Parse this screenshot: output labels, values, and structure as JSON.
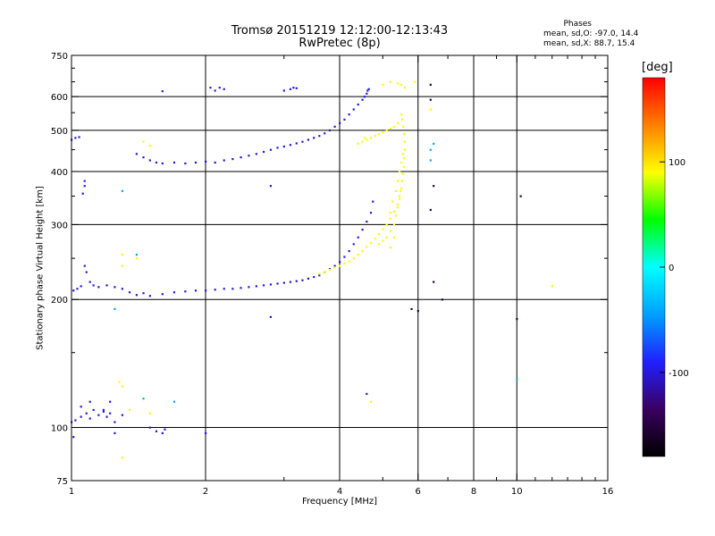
{
  "title": "Tromsø 20151219 12:12:00-12:13:43",
  "subtitle": "RwPretec (8p)",
  "stats": {
    "header": "Phases",
    "lines": [
      "mean, sd,O: -97.0, 14.4",
      "mean, sd,X:  88.7, 15.4"
    ]
  },
  "colorbar": {
    "label": "[deg]",
    "range": [
      -180,
      180
    ],
    "ticks": [
      {
        "v": 100,
        "label": "100"
      },
      {
        "v": 0,
        "label": "0"
      },
      {
        "v": -100,
        "label": "-100"
      }
    ],
    "colors": [
      "#000000",
      "#3a0060",
      "#2020ff",
      "#00a0ff",
      "#00ffff",
      "#00ff00",
      "#ffff00",
      "#ff8000",
      "#ff0000"
    ]
  },
  "chart_data": {
    "type": "scatter",
    "xlabel": "Frequency [MHz]",
    "ylabel": "Stationary phase Virtual Height [km]",
    "xscale": "log",
    "yscale": "log",
    "xlim": [
      1,
      16
    ],
    "ylim": [
      75,
      750
    ],
    "grid": true,
    "xticks": [
      {
        "v": 1,
        "label": "1"
      },
      {
        "v": 2,
        "label": "2"
      },
      {
        "v": 4,
        "label": "4"
      },
      {
        "v": 6,
        "label": "6"
      },
      {
        "v": 8,
        "label": "8"
      },
      {
        "v": 10,
        "label": "10"
      },
      {
        "v": 16,
        "label": "16"
      }
    ],
    "xgrid": [
      1,
      2,
      4,
      6,
      8,
      10,
      16
    ],
    "xminor": [
      3,
      5,
      7,
      9,
      11,
      12,
      13,
      14,
      15
    ],
    "yticks": [
      {
        "v": 75,
        "label": "75"
      },
      {
        "v": 100,
        "label": "100"
      },
      {
        "v": 200,
        "label": "200"
      },
      {
        "v": 300,
        "label": "300"
      },
      {
        "v": 400,
        "label": "400"
      },
      {
        "v": 500,
        "label": "500"
      },
      {
        "v": 600,
        "label": "600"
      },
      {
        "v": 750,
        "label": "750"
      }
    ],
    "ygrid": [
      100,
      200,
      300,
      400,
      500,
      600
    ],
    "yminor": [
      150,
      250,
      350,
      450,
      550,
      650,
      700
    ],
    "series": [
      {
        "mode": "O",
        "phase_deg": -100,
        "points": [
          [
            1.01,
            210
          ],
          [
            1.03,
            212
          ],
          [
            1.05,
            215
          ],
          [
            1.07,
            240
          ],
          [
            1.08,
            232
          ],
          [
            1.1,
            220
          ],
          [
            1.12,
            216
          ],
          [
            1.15,
            214
          ],
          [
            1.2,
            216
          ],
          [
            1.25,
            214
          ],
          [
            1.3,
            212
          ],
          [
            1.35,
            208
          ],
          [
            1.4,
            205
          ],
          [
            1.45,
            207
          ],
          [
            1.5,
            204
          ],
          [
            1.6,
            206
          ],
          [
            1.7,
            208
          ],
          [
            1.8,
            209
          ],
          [
            1.9,
            210
          ],
          [
            2.0,
            210
          ],
          [
            2.1,
            211
          ],
          [
            2.2,
            212
          ],
          [
            2.3,
            212
          ],
          [
            2.4,
            213
          ],
          [
            2.5,
            214
          ],
          [
            2.6,
            215
          ],
          [
            2.7,
            216
          ],
          [
            2.8,
            217
          ],
          [
            2.9,
            218
          ],
          [
            3.0,
            219
          ],
          [
            3.1,
            220
          ],
          [
            3.2,
            221
          ],
          [
            3.3,
            222
          ],
          [
            3.4,
            224
          ],
          [
            3.5,
            226
          ],
          [
            3.6,
            228
          ],
          [
            3.7,
            232
          ],
          [
            3.8,
            236
          ],
          [
            3.9,
            240
          ],
          [
            4.0,
            245
          ],
          [
            4.1,
            252
          ],
          [
            4.2,
            260
          ],
          [
            4.3,
            270
          ],
          [
            4.4,
            280
          ],
          [
            4.5,
            292
          ],
          [
            4.6,
            305
          ],
          [
            4.7,
            320
          ],
          [
            4.75,
            340
          ],
          [
            1.4,
            440
          ],
          [
            1.45,
            432
          ],
          [
            1.5,
            425
          ],
          [
            1.55,
            420
          ],
          [
            1.6,
            418
          ],
          [
            1.7,
            420
          ],
          [
            1.8,
            418
          ],
          [
            1.9,
            420
          ],
          [
            2.0,
            422
          ],
          [
            2.1,
            420
          ],
          [
            2.2,
            425
          ],
          [
            2.3,
            428
          ],
          [
            2.4,
            432
          ],
          [
            2.5,
            436
          ],
          [
            2.6,
            440
          ],
          [
            2.7,
            445
          ],
          [
            2.8,
            450
          ],
          [
            2.9,
            455
          ],
          [
            3.0,
            458
          ],
          [
            3.1,
            462
          ],
          [
            3.2,
            466
          ],
          [
            3.3,
            470
          ],
          [
            3.4,
            475
          ],
          [
            3.5,
            480
          ],
          [
            3.6,
            485
          ],
          [
            3.7,
            492
          ],
          [
            3.8,
            500
          ],
          [
            3.9,
            510
          ],
          [
            4.0,
            520
          ],
          [
            4.1,
            530
          ],
          [
            4.2,
            545
          ],
          [
            4.3,
            560
          ],
          [
            4.4,
            575
          ],
          [
            4.5,
            590
          ],
          [
            4.55,
            600
          ],
          [
            4.6,
            610
          ],
          [
            4.62,
            620
          ],
          [
            4.65,
            625
          ],
          [
            1.0,
            475
          ],
          [
            1.02,
            480
          ],
          [
            1.04,
            482
          ],
          [
            1.06,
            355
          ],
          [
            1.07,
            370
          ],
          [
            1.07,
            380
          ],
          [
            2.05,
            630
          ],
          [
            2.1,
            620
          ],
          [
            2.15,
            630
          ],
          [
            2.2,
            625
          ],
          [
            3.0,
            620
          ],
          [
            3.1,
            625
          ],
          [
            3.15,
            630
          ],
          [
            3.2,
            628
          ],
          [
            1.6,
            618
          ],
          [
            2.8,
            370
          ],
          [
            1.0,
            103
          ],
          [
            1.02,
            104
          ],
          [
            1.05,
            106
          ],
          [
            1.08,
            108
          ],
          [
            1.1,
            105
          ],
          [
            1.12,
            110
          ],
          [
            1.15,
            107
          ],
          [
            1.18,
            109
          ],
          [
            1.2,
            106
          ],
          [
            1.22,
            108
          ],
          [
            1.25,
            103
          ],
          [
            1.3,
            107
          ],
          [
            1.05,
            112
          ],
          [
            1.1,
            115
          ],
          [
            1.18,
            110
          ],
          [
            1.22,
            115
          ],
          [
            1.5,
            100
          ],
          [
            1.55,
            98
          ],
          [
            1.6,
            97
          ],
          [
            1.62,
            99
          ],
          [
            1.01,
            95
          ],
          [
            1.25,
            97
          ],
          [
            2.0,
            97
          ],
          [
            2.8,
            182
          ],
          [
            4.6,
            120
          ]
        ]
      },
      {
        "mode": "X",
        "phase_deg": 90,
        "points": [
          [
            3.6,
            230
          ],
          [
            3.7,
            232
          ],
          [
            3.8,
            235
          ],
          [
            3.9,
            238
          ],
          [
            4.0,
            240
          ],
          [
            4.1,
            243
          ],
          [
            4.2,
            246
          ],
          [
            4.3,
            250
          ],
          [
            4.4,
            255
          ],
          [
            4.5,
            260
          ],
          [
            4.6,
            266
          ],
          [
            4.7,
            272
          ],
          [
            4.8,
            278
          ],
          [
            4.9,
            285
          ],
          [
            5.0,
            293
          ],
          [
            5.1,
            300
          ],
          [
            5.2,
            310
          ],
          [
            5.3,
            322
          ],
          [
            5.4,
            335
          ],
          [
            5.45,
            350
          ],
          [
            5.5,
            365
          ],
          [
            5.52,
            380
          ],
          [
            5.55,
            395
          ],
          [
            5.57,
            410
          ],
          [
            5.58,
            430
          ],
          [
            5.6,
            450
          ],
          [
            5.6,
            470
          ],
          [
            5.58,
            490
          ],
          [
            5.55,
            510
          ],
          [
            5.52,
            530
          ],
          [
            5.5,
            545
          ],
          [
            4.9,
            270
          ],
          [
            5.0,
            275
          ],
          [
            5.1,
            280
          ],
          [
            5.2,
            290
          ],
          [
            5.3,
            300
          ],
          [
            5.35,
            315
          ],
          [
            5.4,
            330
          ],
          [
            5.45,
            345
          ],
          [
            5.48,
            360
          ],
          [
            5.2,
            265
          ],
          [
            5.3,
            280
          ],
          [
            5.1,
            300
          ],
          [
            5.2,
            320
          ],
          [
            5.25,
            340
          ],
          [
            5.35,
            360
          ],
          [
            5.4,
            380
          ],
          [
            5.45,
            400
          ],
          [
            5.5,
            420
          ],
          [
            5.55,
            440
          ],
          [
            4.5,
            470
          ],
          [
            4.6,
            475
          ],
          [
            4.7,
            480
          ],
          [
            4.8,
            485
          ],
          [
            4.9,
            490
          ],
          [
            5.0,
            495
          ],
          [
            5.1,
            500
          ],
          [
            5.2,
            505
          ],
          [
            5.3,
            510
          ],
          [
            5.4,
            520
          ],
          [
            4.4,
            465
          ],
          [
            4.55,
            480
          ],
          [
            5.0,
            640
          ],
          [
            5.2,
            650
          ],
          [
            5.4,
            645
          ],
          [
            5.5,
            640
          ],
          [
            5.6,
            630
          ],
          [
            1.45,
            470
          ],
          [
            1.5,
            460
          ],
          [
            1.3,
            255
          ],
          [
            1.3,
            240
          ],
          [
            1.4,
            250
          ],
          [
            1.3,
            125
          ],
          [
            1.28,
            128
          ],
          [
            1.35,
            110
          ],
          [
            1.5,
            108
          ],
          [
            1.3,
            85
          ],
          [
            4.7,
            115
          ],
          [
            5.9,
            650
          ],
          [
            6.4,
            560
          ],
          [
            12.0,
            215
          ]
        ]
      },
      {
        "mode": "other",
        "phase_deg": -150,
        "points": [
          [
            6.4,
            640
          ],
          [
            6.4,
            590
          ],
          [
            6.5,
            370
          ],
          [
            6.4,
            325
          ],
          [
            6.8,
            200
          ],
          [
            6.5,
            220
          ],
          [
            10.0,
            180
          ],
          [
            10.2,
            350
          ],
          [
            5.8,
            190
          ],
          [
            6.0,
            188
          ]
        ]
      },
      {
        "mode": "other",
        "phase_deg": -40,
        "points": [
          [
            6.4,
            450
          ],
          [
            6.4,
            425
          ],
          [
            6.5,
            465
          ],
          [
            10.0,
            130
          ],
          [
            1.3,
            360
          ],
          [
            1.7,
            115
          ],
          [
            1.45,
            117
          ],
          [
            1.25,
            190
          ],
          [
            1.4,
            255
          ]
        ]
      }
    ]
  }
}
